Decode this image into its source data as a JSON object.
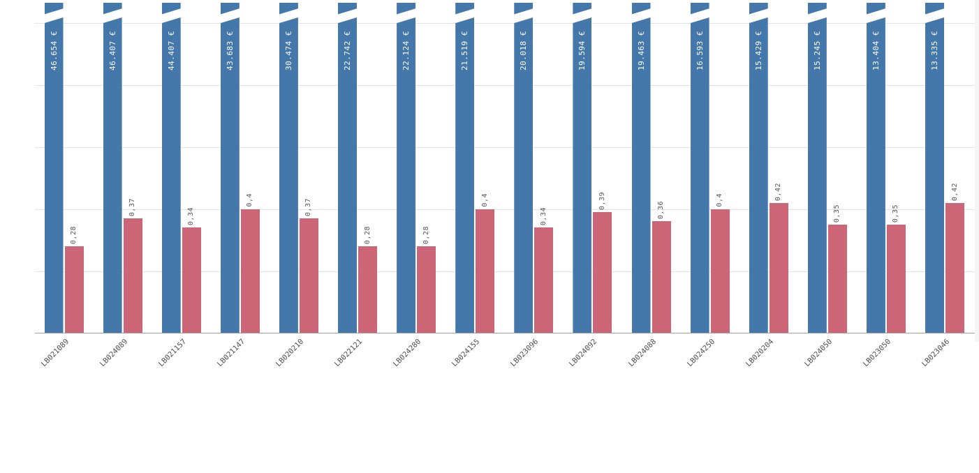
{
  "chart_data": {
    "type": "bar",
    "title": "",
    "xlabel": "",
    "ylabel": "",
    "categories": [
      "LB021089",
      "LB024089",
      "LB021157",
      "LB021147",
      "LB020210",
      "LB022121",
      "LB024280",
      "LB024155",
      "LB023096",
      "LB024092",
      "LB024088",
      "LB024250",
      "LB020204",
      "LB024050",
      "LB023050",
      "LB023046"
    ],
    "series": [
      {
        "name": "amount-eur",
        "color": "#4477aa",
        "unit": "€",
        "clipped_at_axis_max": true,
        "values": [
          46654,
          46407,
          44407,
          43683,
          30474,
          22742,
          22124,
          21519,
          20018,
          19594,
          19463,
          16593,
          15429,
          15245,
          13404,
          13335
        ],
        "labels": [
          "46.654 €",
          "46.407 €",
          "44.407 €",
          "43.683 €",
          "30.474 €",
          "22.742 €",
          "22.124 €",
          "21.519 €",
          "20.018 €",
          "19.594 €",
          "19.463 €",
          "16.593 €",
          "15.429 €",
          "15.245 €",
          "13.404 €",
          "13.335 €"
        ]
      },
      {
        "name": "ratio",
        "color": "#cc6677",
        "values": [
          0.28,
          0.37,
          0.34,
          0.4,
          0.37,
          0.28,
          0.28,
          0.4,
          0.34,
          0.39,
          0.36,
          0.4,
          0.42,
          0.35,
          0.35,
          0.42
        ],
        "labels": [
          "0,28",
          "0,37",
          "0,34",
          "0,4",
          "0,37",
          "0,28",
          "0,28",
          "0,4",
          "0,34",
          "0,39",
          "0,36",
          "0,4",
          "0,42",
          "0,35",
          "0,35",
          "0,42"
        ]
      }
    ],
    "ylim": [
      0,
      1
    ],
    "gridline_step": 0.2,
    "y_axis_tick_labels_visible": false,
    "grid": true,
    "legend": "none"
  },
  "colors": {
    "background": "#ffffff",
    "gridline": "#e4e4e4",
    "axis_line": "#a3a3a3",
    "x_label_text": "#4f4f4f",
    "bar_value_text_on_blue": "#ffffff",
    "bar_value_text_gray": "#595959"
  }
}
